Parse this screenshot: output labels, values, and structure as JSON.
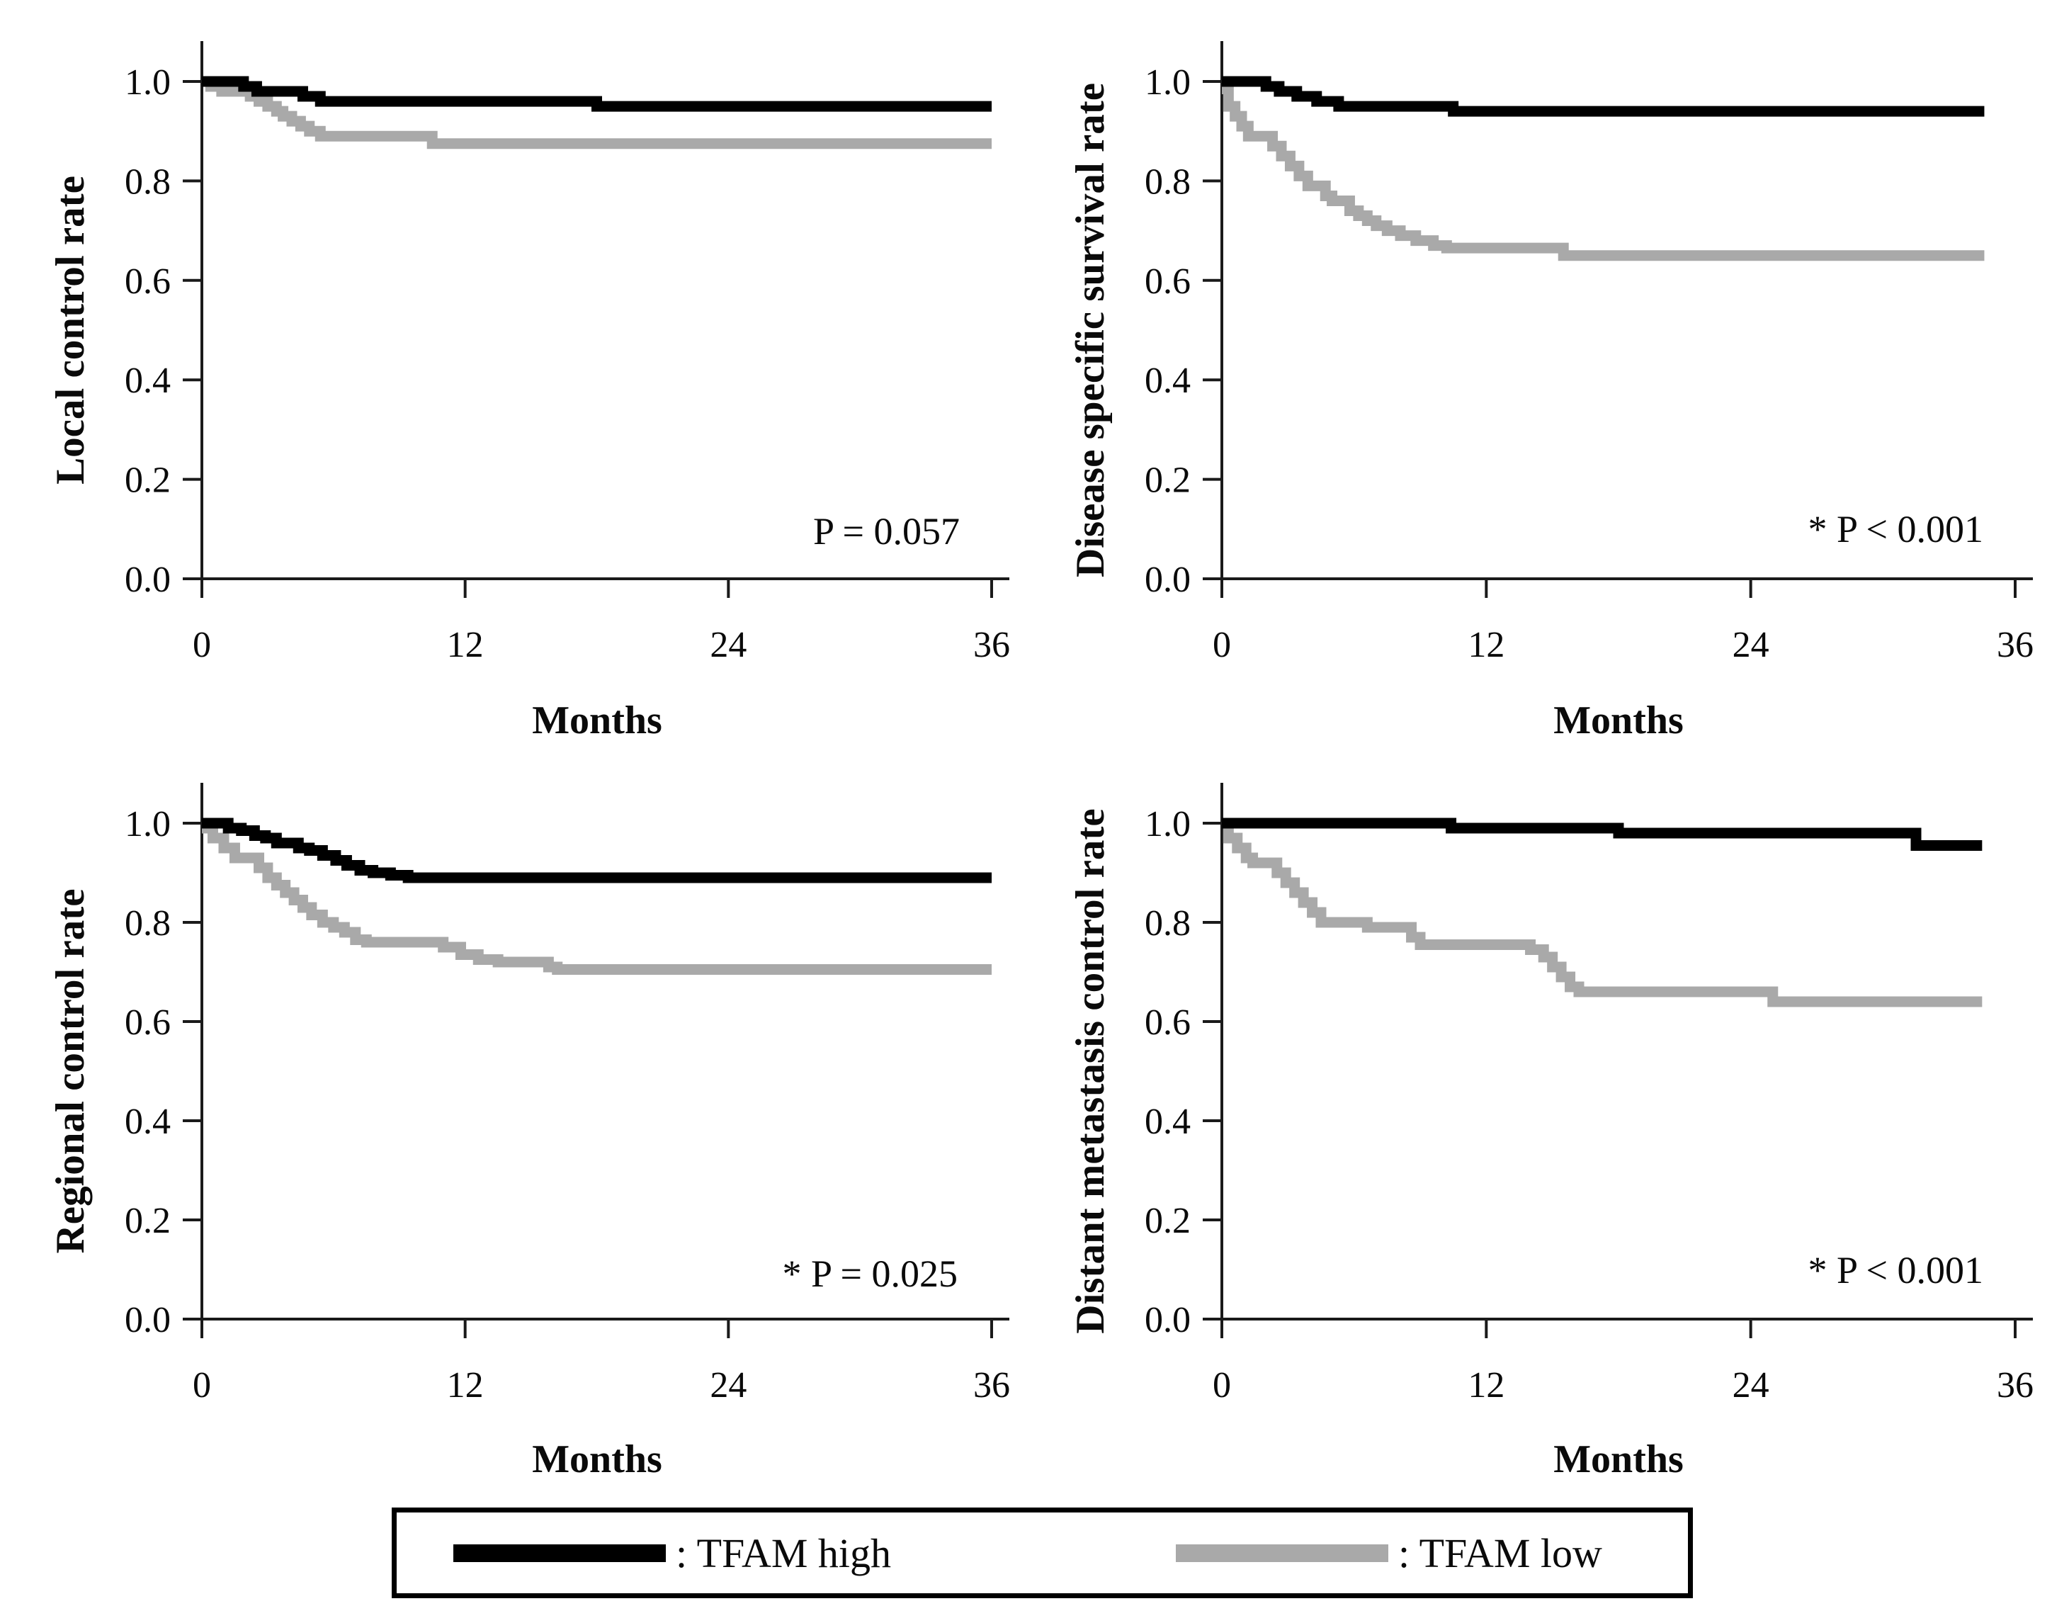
{
  "figure": {
    "background": "#ffffff",
    "series_colors": {
      "tfam_high": "#000000",
      "tfam_low": "#a9a9a9"
    },
    "axis_color": "#1a1a1a"
  },
  "legend": {
    "items": [
      {
        "name": "TFAM high",
        "label": ": TFAM high",
        "color": "#000000"
      },
      {
        "name": "TFAM low",
        "label": ": TFAM low",
        "color": "#a9a9a9"
      }
    ]
  },
  "chart_data": [
    {
      "type": "line",
      "subtype": "kaplan-meier-step",
      "ylabel": "Local control rate",
      "xlabel": "Months",
      "p_label": "P = 0.057",
      "xlim": [
        0,
        36
      ],
      "ylim": [
        0.0,
        1.0
      ],
      "grid": false,
      "x_ticks": [
        0,
        12,
        24,
        36
      ],
      "x_tick_labels": [
        "0",
        "12",
        "24",
        "36"
      ],
      "y_ticks": [
        0.0,
        0.2,
        0.4,
        0.6,
        0.8,
        1.0
      ],
      "y_tick_labels": [
        "0.0",
        "0.2",
        "0.4",
        "0.6",
        "0.8",
        "1.0"
      ],
      "series": [
        {
          "name": "TFAM low",
          "color": "#a9a9a9",
          "points": [
            [
              0,
              1.0
            ],
            [
              0.4,
              0.99
            ],
            [
              0.9,
              0.98
            ],
            [
              2.2,
              0.97
            ],
            [
              2.6,
              0.96
            ],
            [
              3.0,
              0.95
            ],
            [
              3.4,
              0.94
            ],
            [
              3.7,
              0.93
            ],
            [
              4.1,
              0.92
            ],
            [
              4.5,
              0.91
            ],
            [
              4.9,
              0.9
            ],
            [
              5.4,
              0.89
            ],
            [
              10.5,
              0.875
            ],
            [
              36,
              0.875
            ]
          ]
        },
        {
          "name": "TFAM high",
          "color": "#000000",
          "points": [
            [
              0,
              1.0
            ],
            [
              1.9,
              0.99
            ],
            [
              2.5,
              0.98
            ],
            [
              4.6,
              0.97
            ],
            [
              5.4,
              0.96
            ],
            [
              18,
              0.95
            ],
            [
              36,
              0.95
            ]
          ]
        }
      ]
    },
    {
      "type": "line",
      "subtype": "kaplan-meier-step",
      "ylabel": "Disease specific survival rate",
      "xlabel": "Months",
      "p_label": "* P < 0.001",
      "xlim": [
        0,
        36
      ],
      "ylim": [
        0.0,
        1.0
      ],
      "grid": false,
      "x_ticks": [
        0,
        12,
        24,
        36
      ],
      "x_tick_labels": [
        "0",
        "12",
        "24",
        "36"
      ],
      "y_ticks": [
        0.0,
        0.2,
        0.4,
        0.6,
        0.8,
        1.0
      ],
      "y_tick_labels": [
        "0.0",
        "0.2",
        "0.4",
        "0.6",
        "0.8",
        "1.0"
      ],
      "series": [
        {
          "name": "TFAM low",
          "color": "#a9a9a9",
          "points": [
            [
              0,
              0.985
            ],
            [
              0.3,
              0.95
            ],
            [
              0.6,
              0.93
            ],
            [
              0.9,
              0.91
            ],
            [
              1.2,
              0.89
            ],
            [
              2.3,
              0.87
            ],
            [
              2.7,
              0.85
            ],
            [
              3.1,
              0.83
            ],
            [
              3.5,
              0.81
            ],
            [
              3.9,
              0.79
            ],
            [
              4.7,
              0.77
            ],
            [
              5.0,
              0.76
            ],
            [
              5.8,
              0.74
            ],
            [
              6.2,
              0.73
            ],
            [
              6.6,
              0.72
            ],
            [
              7.0,
              0.71
            ],
            [
              7.5,
              0.7
            ],
            [
              8.1,
              0.69
            ],
            [
              8.8,
              0.68
            ],
            [
              9.6,
              0.67
            ],
            [
              10.2,
              0.665
            ],
            [
              15.5,
              0.65
            ],
            [
              34.6,
              0.65
            ]
          ]
        },
        {
          "name": "TFAM high",
          "color": "#000000",
          "points": [
            [
              0,
              1.0
            ],
            [
              2.0,
              0.99
            ],
            [
              2.6,
              0.98
            ],
            [
              3.4,
              0.97
            ],
            [
              4.3,
              0.96
            ],
            [
              5.3,
              0.95
            ],
            [
              10.5,
              0.94
            ],
            [
              34.6,
              0.94
            ]
          ]
        }
      ]
    },
    {
      "type": "line",
      "subtype": "kaplan-meier-step",
      "ylabel": "Regional control rate",
      "xlabel": "Months",
      "p_label": "* P = 0.025",
      "xlim": [
        0,
        36
      ],
      "ylim": [
        0.0,
        1.0
      ],
      "grid": false,
      "x_ticks": [
        0,
        12,
        24,
        36
      ],
      "x_tick_labels": [
        "0",
        "12",
        "24",
        "36"
      ],
      "y_ticks": [
        0.0,
        0.2,
        0.4,
        0.6,
        0.8,
        1.0
      ],
      "y_tick_labels": [
        "0.0",
        "0.2",
        "0.4",
        "0.6",
        "0.8",
        "1.0"
      ],
      "series": [
        {
          "name": "TFAM low",
          "color": "#a9a9a9",
          "points": [
            [
              0,
              0.99
            ],
            [
              0.5,
              0.97
            ],
            [
              1.0,
              0.95
            ],
            [
              1.5,
              0.93
            ],
            [
              2.6,
              0.91
            ],
            [
              3.0,
              0.89
            ],
            [
              3.4,
              0.875
            ],
            [
              3.8,
              0.86
            ],
            [
              4.2,
              0.845
            ],
            [
              4.6,
              0.83
            ],
            [
              5.0,
              0.815
            ],
            [
              5.5,
              0.8
            ],
            [
              6.0,
              0.79
            ],
            [
              6.5,
              0.78
            ],
            [
              7.0,
              0.765
            ],
            [
              7.5,
              0.76
            ],
            [
              11.0,
              0.75
            ],
            [
              11.8,
              0.735
            ],
            [
              12.6,
              0.725
            ],
            [
              13.5,
              0.72
            ],
            [
              15.8,
              0.71
            ],
            [
              16.2,
              0.705
            ],
            [
              36,
              0.705
            ]
          ]
        },
        {
          "name": "TFAM high",
          "color": "#000000",
          "points": [
            [
              0,
              1.0
            ],
            [
              1.2,
              0.99
            ],
            [
              1.8,
              0.985
            ],
            [
              2.4,
              0.975
            ],
            [
              2.9,
              0.97
            ],
            [
              3.4,
              0.96
            ],
            [
              4.4,
              0.95
            ],
            [
              4.9,
              0.945
            ],
            [
              5.5,
              0.935
            ],
            [
              6.1,
              0.925
            ],
            [
              6.6,
              0.915
            ],
            [
              7.2,
              0.905
            ],
            [
              7.8,
              0.9
            ],
            [
              8.6,
              0.895
            ],
            [
              9.4,
              0.89
            ],
            [
              36,
              0.89
            ]
          ]
        }
      ]
    },
    {
      "type": "line",
      "subtype": "kaplan-meier-step",
      "ylabel": "Distant metastasis control rate",
      "xlabel": "Months",
      "p_label": "* P < 0.001",
      "xlim": [
        0,
        36
      ],
      "ylim": [
        0.0,
        1.0
      ],
      "grid": false,
      "x_ticks": [
        0,
        12,
        24,
        36
      ],
      "x_tick_labels": [
        "0",
        "12",
        "24",
        "36"
      ],
      "y_ticks": [
        0.0,
        0.2,
        0.4,
        0.6,
        0.8,
        1.0
      ],
      "y_tick_labels": [
        "0.0",
        "0.2",
        "0.4",
        "0.6",
        "0.8",
        "1.0"
      ],
      "series": [
        {
          "name": "TFAM low",
          "color": "#a9a9a9",
          "points": [
            [
              0,
              1.0
            ],
            [
              0.3,
              0.97
            ],
            [
              0.7,
              0.95
            ],
            [
              1.1,
              0.93
            ],
            [
              1.4,
              0.92
            ],
            [
              2.5,
              0.9
            ],
            [
              2.9,
              0.88
            ],
            [
              3.3,
              0.86
            ],
            [
              3.7,
              0.84
            ],
            [
              4.1,
              0.82
            ],
            [
              4.5,
              0.8
            ],
            [
              6.6,
              0.79
            ],
            [
              8.6,
              0.77
            ],
            [
              9.0,
              0.755
            ],
            [
              14.0,
              0.745
            ],
            [
              14.6,
              0.73
            ],
            [
              15.0,
              0.71
            ],
            [
              15.4,
              0.69
            ],
            [
              15.8,
              0.67
            ],
            [
              16.2,
              0.66
            ],
            [
              25.0,
              0.64
            ],
            [
              34.5,
              0.64
            ]
          ]
        },
        {
          "name": "TFAM high",
          "color": "#000000",
          "points": [
            [
              0,
              1.0
            ],
            [
              10.4,
              0.99
            ],
            [
              18.0,
              0.98
            ],
            [
              31.5,
              0.955
            ],
            [
              34.5,
              0.955
            ]
          ]
        }
      ]
    }
  ]
}
